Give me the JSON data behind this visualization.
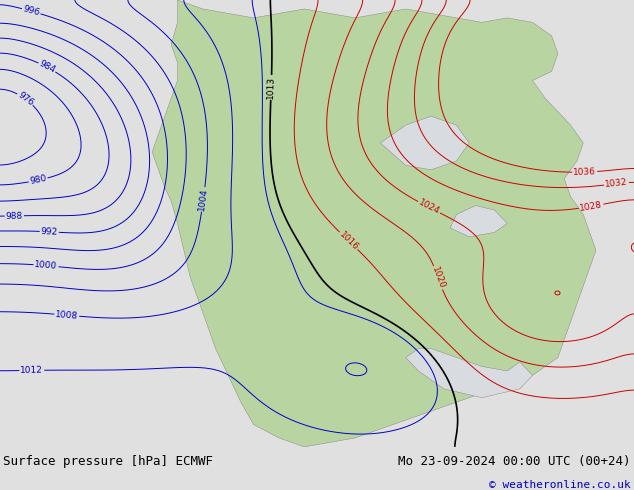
{
  "title_left": "Surface pressure [hPa] ECMWF",
  "title_right": "Mo 23-09-2024 00:00 UTC (00+24)",
  "copyright": "© weatheronline.co.uk",
  "bg_color": "#d8dce0",
  "land_color": "#b8d4a0",
  "footer_bg": "#e0e0e0",
  "footer_text_color": "#000000",
  "copyright_color": "#0000cc",
  "isobar_blue_color": "#0000cc",
  "isobar_red_color": "#cc0000",
  "isobar_black_color": "#000000",
  "label_fontsize": 6.5,
  "footer_fontsize": 9,
  "fig_width": 6.34,
  "fig_height": 4.9
}
